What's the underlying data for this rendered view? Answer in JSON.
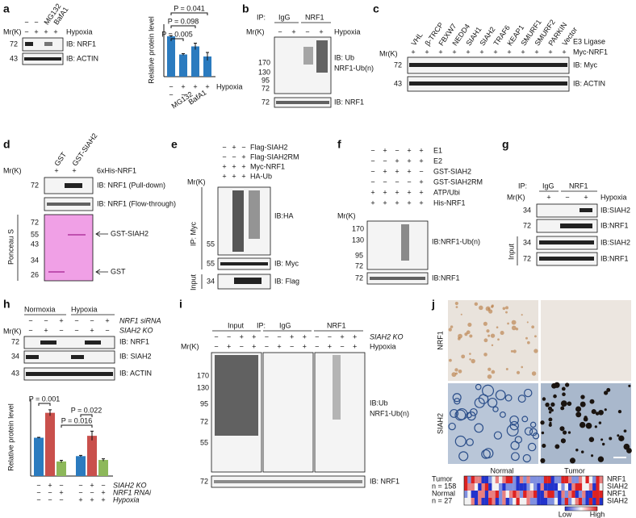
{
  "panels": {
    "a": {
      "label": "a",
      "treat_signs": [
        "−",
        "−"
      ],
      "mg132": "MG132",
      "bafa1": "BafA1",
      "mr": "Mr(K)",
      "hypoxia_signs": [
        "−",
        "+",
        "+",
        "+"
      ],
      "hypoxia": "Hypoxia",
      "markers": [
        "72",
        "43"
      ],
      "blots": [
        "IB: NRF1",
        "IB: ACTIN"
      ],
      "chart": {
        "ylabel": "Relative protein level",
        "values": [
          1.0,
          0.55,
          0.75,
          0.5
        ],
        "errors": [
          0.02,
          0.02,
          0.08,
          0.1
        ],
        "color": "#2b7bbf",
        "ylim": [
          0,
          1.3
        ],
        "pvalues": [
          "P = 0.005",
          "P = 0.098",
          "P = 0.041"
        ],
        "hypoxia_signs": [
          "−",
          "+",
          "+",
          "+"
        ],
        "hypoxia": "Hypoxia",
        "treat_signs": [
          "−",
          "−"
        ],
        "mg132": "MG132",
        "bafa1": "BafA1"
      }
    },
    "b": {
      "label": "b",
      "ip": "IP:",
      "igg": "IgG",
      "nrf1": "NRF1",
      "mr": "Mr(K)",
      "signs": [
        "−",
        "+",
        "−",
        "+"
      ],
      "hypoxia": "Hypoxia",
      "markers": [
        "170",
        "130",
        "95",
        "72",
        "72"
      ],
      "ib_ub": "IB: Ub",
      "ub_n": "NRF1-Ub(n)",
      "ib_nrf1": "IB: NRF1"
    },
    "c": {
      "label": "c",
      "ligases": [
        "VHL",
        "β-TRCP",
        "FBXW7",
        "NEDD4",
        "SIAH1",
        "SIAH2",
        "TRAF6",
        "KEAP1",
        "SMURF1",
        "SMURF2",
        "PARKIN",
        "Vector"
      ],
      "highlight_color": "#e0201b",
      "e3": "E3 Ligase",
      "myc": "Myc-NRF1",
      "signs": [
        "+",
        "+",
        "+",
        "+",
        "+",
        "+",
        "+",
        "+",
        "+",
        "+",
        "+",
        "+"
      ],
      "mr": "Mr(K)",
      "markers": [
        "72",
        "43"
      ],
      "blots": [
        "IB: Myc",
        "IB: ACTIN"
      ]
    },
    "d": {
      "label": "d",
      "gst": "GST",
      "gst_siah2": "GST-SIAH2",
      "mr": "Mr(K)",
      "his_signs": [
        "+",
        "+"
      ],
      "his": "6xHis-NRF1",
      "blots": [
        "IB: NRF1 (Pull-down)",
        "IB: NRF1 (Flow-through)"
      ],
      "markers": [
        "72",
        "72",
        "55",
        "43",
        "34",
        "26"
      ],
      "ponceau": "Ponceau S",
      "arrows": [
        "GST-SIAH2",
        "GST"
      ]
    },
    "e": {
      "label": "e",
      "conditions": [
        "Flag-SIAH2",
        "Flag-SIAH2RM",
        "Myc-NRF1",
        "HA-Ub"
      ],
      "signs": [
        [
          "−",
          "+",
          "−"
        ],
        [
          "−",
          "−",
          "+"
        ],
        [
          "+",
          "+",
          "+"
        ],
        [
          "+",
          "+",
          "+"
        ]
      ],
      "mr": "Mr(K)",
      "ip": "IP: Myc",
      "input": "Input",
      "markers": [
        "55",
        "55",
        "34"
      ],
      "blots": [
        "IB:HA",
        "IB: Myc",
        "IB: Flag"
      ]
    },
    "f": {
      "label": "f",
      "conditions": [
        "E1",
        "E2",
        "GST-SIAH2",
        "GST-SIAH2RM",
        "ATP/Ubi",
        "His-NRF1"
      ],
      "signs": [
        [
          "−",
          "+",
          "−",
          "+",
          "+"
        ],
        [
          "−",
          "−",
          "+",
          "+",
          "+"
        ],
        [
          "−",
          "+",
          "+",
          "+",
          "−"
        ],
        [
          "−",
          "−",
          "−",
          "−",
          "+"
        ],
        [
          "+",
          "+",
          "+",
          "+",
          "+"
        ],
        [
          "+",
          "+",
          "+",
          "+",
          "+"
        ]
      ],
      "mr": "Mr(K)",
      "markers": [
        "170",
        "130",
        "95",
        "72",
        "72"
      ],
      "blots": [
        "IB:NRF1-Ub(n)",
        "IB:NRF1"
      ]
    },
    "g": {
      "label": "g",
      "ip": "IP:",
      "igg": "IgG",
      "nrf1": "NRF1",
      "mr": "Mr(K)",
      "signs": [
        "+",
        "−",
        "+"
      ],
      "hypoxia": "Hypoxia",
      "input": "Input",
      "markers": [
        "34",
        "72",
        "34",
        "72"
      ],
      "blots": [
        "IB:SIAH2",
        "IB:NRF1",
        "IB:SIAH2",
        "IB:NRF1"
      ]
    },
    "h": {
      "label": "h",
      "normoxia": "Normoxia",
      "hypoxia": "Hypoxia",
      "sirna": "NRF1 siRNA",
      "sirna_signs": [
        "−",
        "−",
        "+",
        "−",
        "−",
        "+"
      ],
      "ko": "SIAH2 KO",
      "ko_signs": [
        "−",
        "+",
        "−",
        "−",
        "+",
        "−"
      ],
      "mr": "Mr(K)",
      "markers": [
        "72",
        "34",
        "43"
      ],
      "blots": [
        "IB: NRF1",
        "IB: SIAH2",
        "IB: ACTIN"
      ],
      "chart": {
        "ylabel": "Relative protein level",
        "values": [
          1.0,
          1.65,
          0.38,
          0.52,
          1.05,
          0.42
        ],
        "errors": [
          0.01,
          0.08,
          0.03,
          0.02,
          0.12,
          0.03
        ],
        "colors": [
          "#2b7bbf",
          "#c9504c",
          "#8db85a",
          "#2b7bbf",
          "#c9504c",
          "#8db85a"
        ],
        "ylim": [
          0,
          2
        ],
        "pvalues": [
          "P = 0.001",
          "P = 0.022",
          "P = 0.016"
        ],
        "row_labels": [
          "SIAH2 KO",
          "NRF1 RNAi",
          "Hypoxia"
        ],
        "rows": [
          [
            "−",
            "+",
            "−",
            "−",
            "+",
            "−"
          ],
          [
            "−",
            "−",
            "+",
            "−",
            "−",
            "+"
          ],
          [
            "−",
            "−",
            "−",
            "+",
            "+",
            "+"
          ]
        ]
      }
    },
    "i": {
      "label": "i",
      "input": "Input",
      "ip": "IP:",
      "igg": "IgG",
      "nrf1": "NRF1",
      "ko": "SIAH2 KO",
      "ko_signs": [
        "−",
        "−",
        "+",
        "+",
        "−",
        "−",
        "+",
        "+",
        "−",
        "−",
        "+",
        "+"
      ],
      "hypoxia": "Hypoxia",
      "hyp_signs": [
        "−",
        "+",
        "−",
        "+",
        "−",
        "+",
        "−",
        "+",
        "−",
        "+",
        "−",
        "+"
      ],
      "mr": "Mr(K)",
      "markers": [
        "170",
        "130",
        "95",
        "72",
        "55",
        "72"
      ],
      "ib_ub": "IB:Ub",
      "ub_n": "NRF1-Ub(n)",
      "ib_nrf1": "IB: NRF1"
    },
    "j": {
      "label": "j",
      "row_labels": [
        "NRF1",
        "SIAH2"
      ],
      "col_labels": [
        "Normal",
        "Tumor"
      ],
      "groups": [
        "Tumor",
        "n = 158",
        "Normal",
        "n = 27"
      ],
      "heat_rows": [
        "NRF1",
        "SIAH2",
        "NRF1",
        "SIAH2"
      ],
      "low": "Low",
      "high": "High"
    }
  }
}
